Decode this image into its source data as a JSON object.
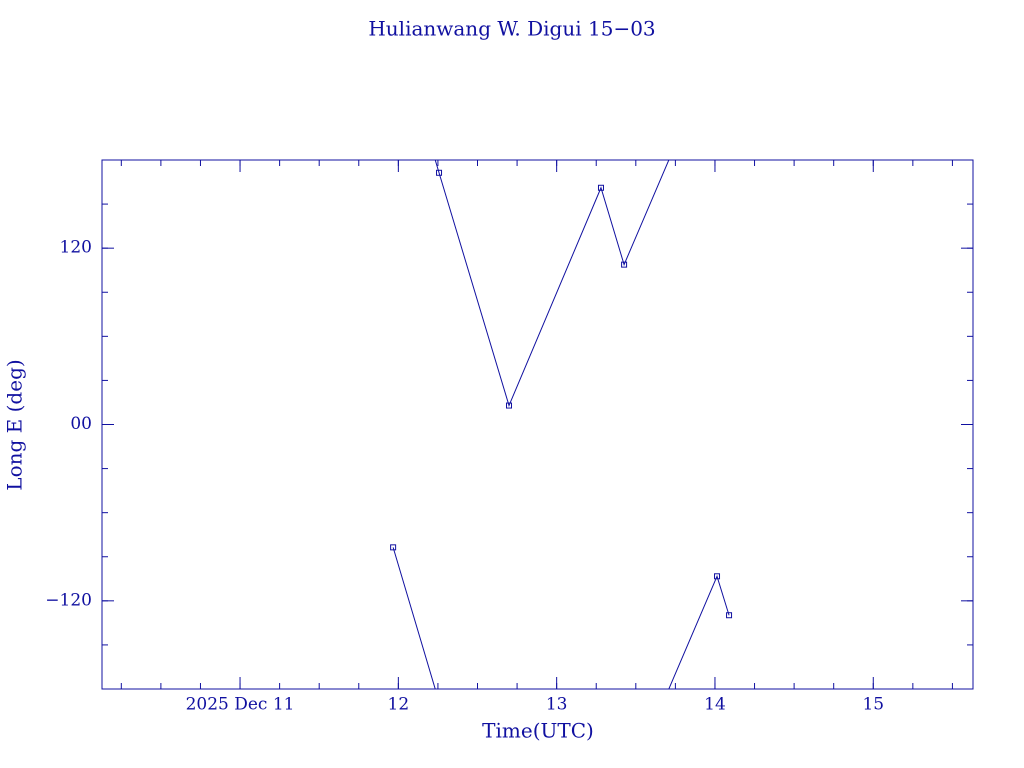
{
  "chart_data": {
    "type": "line",
    "title": "Hulianwang W. Digui 15−03",
    "x_label": "Time(UTC)",
    "y_label": "Long E (deg)",
    "color": "#1010a0",
    "xlim": [
      10.128,
      15.63
    ],
    "ylim": [
      -180,
      180
    ],
    "xticks": [
      {
        "value": 11,
        "label": "2025 Dec 11"
      },
      12,
      13,
      14,
      15
    ],
    "yticks": [
      {
        "value": -120,
        "label": "−120"
      },
      {
        "value": 0,
        "label": "00"
      },
      120
    ],
    "x": [
      11.967,
      12.257,
      12.699,
      13.28,
      13.426,
      14.013,
      14.089
    ],
    "values": [
      -83.6,
      171.3,
      12.9,
      161.1,
      108.8,
      -103.3,
      -129.8
    ]
  }
}
